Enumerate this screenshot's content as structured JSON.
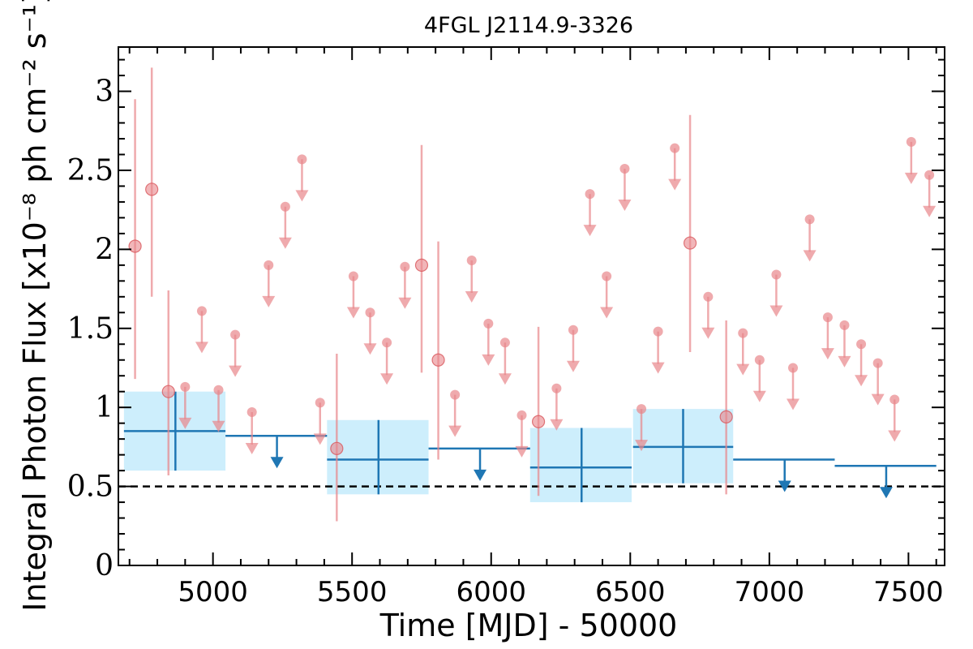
{
  "chart_data": {
    "type": "scatter",
    "title": "4FGL J2114.9-3326",
    "xlabel": "Time [MJD] - 50000",
    "ylabel": "Integral Photon Flux [x10⁻⁸ ph cm⁻² s⁻¹]",
    "xlim": [
      4660,
      7630
    ],
    "ylim": [
      0,
      3.28
    ],
    "x_ticks": [
      5000,
      5500,
      6000,
      6500,
      7000,
      7500
    ],
    "x_tick_labels": [
      "5000",
      "5500",
      "6000",
      "6500",
      "7000",
      "7500"
    ],
    "y_ticks": [
      0,
      0.5,
      1,
      1.5,
      2,
      2.5,
      3
    ],
    "y_tick_labels": [
      "0",
      "0.5",
      "1",
      "1.5",
      "2",
      "2.5",
      "3"
    ],
    "reference_line": {
      "y": 0.5,
      "style": "dashed",
      "color": "#000000"
    },
    "colors": {
      "long_bins": "#1f77b4",
      "long_bins_fill": "#cdeefc",
      "short_bins": "#e8868a"
    },
    "long_bins": {
      "detections": [
        {
          "x": 4865,
          "xmin": 4680,
          "xmax": 5045,
          "y": 0.85,
          "ylo": 0.6,
          "yhi": 1.1
        },
        {
          "x": 5595,
          "xmin": 5410,
          "xmax": 5775,
          "y": 0.67,
          "ylo": 0.45,
          "yhi": 0.92
        },
        {
          "x": 6325,
          "xmin": 6140,
          "xmax": 6505,
          "y": 0.62,
          "ylo": 0.4,
          "yhi": 0.87
        },
        {
          "x": 6690,
          "xmin": 6510,
          "xmax": 6870,
          "y": 0.75,
          "ylo": 0.52,
          "yhi": 0.99
        }
      ],
      "upper_limits": [
        {
          "x": 5230,
          "xmin": 5045,
          "xmax": 5410,
          "y": 0.82
        },
        {
          "x": 5960,
          "xmin": 5775,
          "xmax": 6140,
          "y": 0.74
        },
        {
          "x": 7055,
          "xmin": 6870,
          "xmax": 7235,
          "y": 0.67
        },
        {
          "x": 7420,
          "xmin": 7235,
          "xmax": 7600,
          "y": 0.63
        }
      ]
    },
    "short_bins": {
      "detections": [
        {
          "x": 4720,
          "y": 2.02,
          "ylo": 1.18,
          "yhi": 2.95
        },
        {
          "x": 4780,
          "y": 2.38,
          "ylo": 1.7,
          "yhi": 3.15
        },
        {
          "x": 4840,
          "y": 1.1,
          "ylo": 0.57,
          "yhi": 1.74
        },
        {
          "x": 5445,
          "y": 0.74,
          "ylo": 0.28,
          "yhi": 1.34
        },
        {
          "x": 5750,
          "y": 1.9,
          "ylo": 1.22,
          "yhi": 2.66
        },
        {
          "x": 5810,
          "y": 1.3,
          "ylo": 0.67,
          "yhi": 2.05
        },
        {
          "x": 6170,
          "y": 0.91,
          "ylo": 0.44,
          "yhi": 1.51
        },
        {
          "x": 6715,
          "y": 2.04,
          "ylo": 1.35,
          "yhi": 2.85
        },
        {
          "x": 6845,
          "y": 0.94,
          "ylo": 0.45,
          "yhi": 1.55
        }
      ],
      "upper_limits": [
        {
          "x": 4900,
          "y": 1.13
        },
        {
          "x": 4960,
          "y": 1.61
        },
        {
          "x": 5020,
          "y": 1.11
        },
        {
          "x": 5080,
          "y": 1.46
        },
        {
          "x": 5140,
          "y": 0.97
        },
        {
          "x": 5200,
          "y": 1.9
        },
        {
          "x": 5260,
          "y": 2.27
        },
        {
          "x": 5320,
          "y": 2.57
        },
        {
          "x": 5385,
          "y": 1.03
        },
        {
          "x": 5505,
          "y": 1.83
        },
        {
          "x": 5565,
          "y": 1.6
        },
        {
          "x": 5625,
          "y": 1.41
        },
        {
          "x": 5690,
          "y": 1.89
        },
        {
          "x": 5870,
          "y": 1.08
        },
        {
          "x": 5930,
          "y": 1.93
        },
        {
          "x": 5990,
          "y": 1.53
        },
        {
          "x": 6050,
          "y": 1.41
        },
        {
          "x": 6110,
          "y": 0.95
        },
        {
          "x": 6235,
          "y": 1.12
        },
        {
          "x": 6295,
          "y": 1.49
        },
        {
          "x": 6355,
          "y": 2.35
        },
        {
          "x": 6415,
          "y": 1.83
        },
        {
          "x": 6480,
          "y": 2.51
        },
        {
          "x": 6540,
          "y": 0.99
        },
        {
          "x": 6600,
          "y": 1.48
        },
        {
          "x": 6660,
          "y": 2.64
        },
        {
          "x": 6780,
          "y": 1.7
        },
        {
          "x": 6905,
          "y": 1.47
        },
        {
          "x": 6965,
          "y": 1.3
        },
        {
          "x": 7025,
          "y": 1.84
        },
        {
          "x": 7085,
          "y": 1.25
        },
        {
          "x": 7145,
          "y": 2.19
        },
        {
          "x": 7210,
          "y": 1.57
        },
        {
          "x": 7270,
          "y": 1.52
        },
        {
          "x": 7330,
          "y": 1.4
        },
        {
          "x": 7390,
          "y": 1.28
        },
        {
          "x": 7450,
          "y": 1.05
        },
        {
          "x": 7510,
          "y": 2.68
        },
        {
          "x": 7575,
          "y": 2.47
        }
      ]
    }
  }
}
